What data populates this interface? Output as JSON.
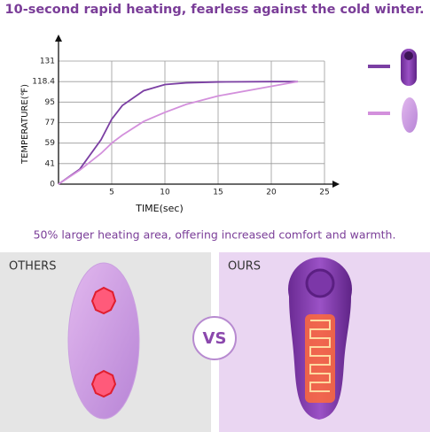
{
  "chart_data": {
    "type": "line",
    "title": "10-second rapid heating, fearless against the cold winter.",
    "x_label": "TIME(sec)",
    "y_label": "TEMPERATURE(℉)",
    "x": [
      0,
      2,
      4,
      5,
      6,
      8,
      10,
      12,
      15,
      20,
      22.5
    ],
    "series": [
      {
        "color": "#7b3fa3",
        "values": [
          0,
          30,
          62,
          80,
          92,
          108,
          115,
          117,
          118,
          118.4,
          118.4
        ]
      },
      {
        "color": "#d390dc",
        "values": [
          0,
          28,
          50,
          59,
          66,
          78,
          86,
          93,
          102,
          113,
          118.4
        ]
      }
    ],
    "xlim": [
      0,
      25
    ],
    "xticks": [
      5,
      10,
      15,
      20,
      25
    ],
    "ylim": [
      0,
      131
    ],
    "yticks": [
      0,
      41,
      59,
      77,
      95,
      118.4,
      131
    ],
    "grid": true
  },
  "comparison": {
    "subtitle": "50% larger heating area, offering increased comfort and warmth.",
    "left_label": "OTHERS",
    "center_label": "VS",
    "right_label": "OURS"
  }
}
